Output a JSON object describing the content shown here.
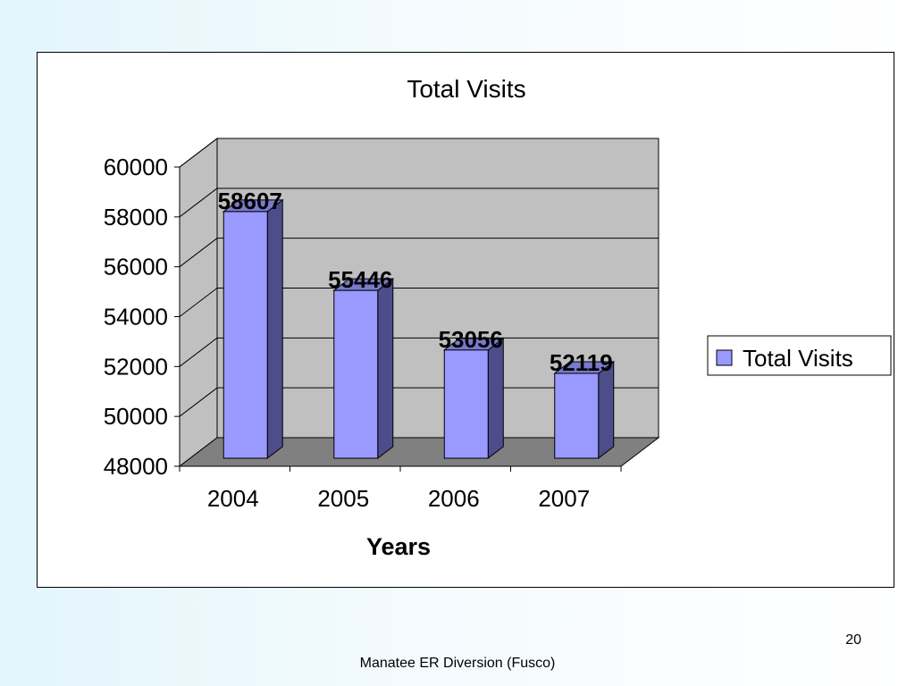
{
  "chart_data": {
    "type": "bar",
    "title": "Total Visits",
    "xlabel": "Years",
    "ylabel": "",
    "categories": [
      "2004",
      "2005",
      "2006",
      "2007"
    ],
    "series": [
      {
        "name": "Total Visits",
        "values": [
          58607,
          55446,
          53056,
          52119
        ]
      }
    ],
    "ylim": [
      48000,
      60000
    ],
    "yticks": [
      "60000",
      "58000",
      "56000",
      "54000",
      "52000",
      "50000",
      "48000"
    ],
    "data_labels": [
      "58607",
      "55446",
      "53056",
      "52119"
    ],
    "grid": true,
    "legend": "right",
    "three_d": true,
    "colors": {
      "bar_front": "#9999ff",
      "bar_side": "#4d4d8c",
      "bar_top": "#7a7acc",
      "wall": "#c0c0c0",
      "floor": "#808080",
      "edge": "#000000"
    }
  },
  "footer": {
    "slide_number": "20",
    "caption": "Manatee ER Diversion (Fusco)"
  }
}
